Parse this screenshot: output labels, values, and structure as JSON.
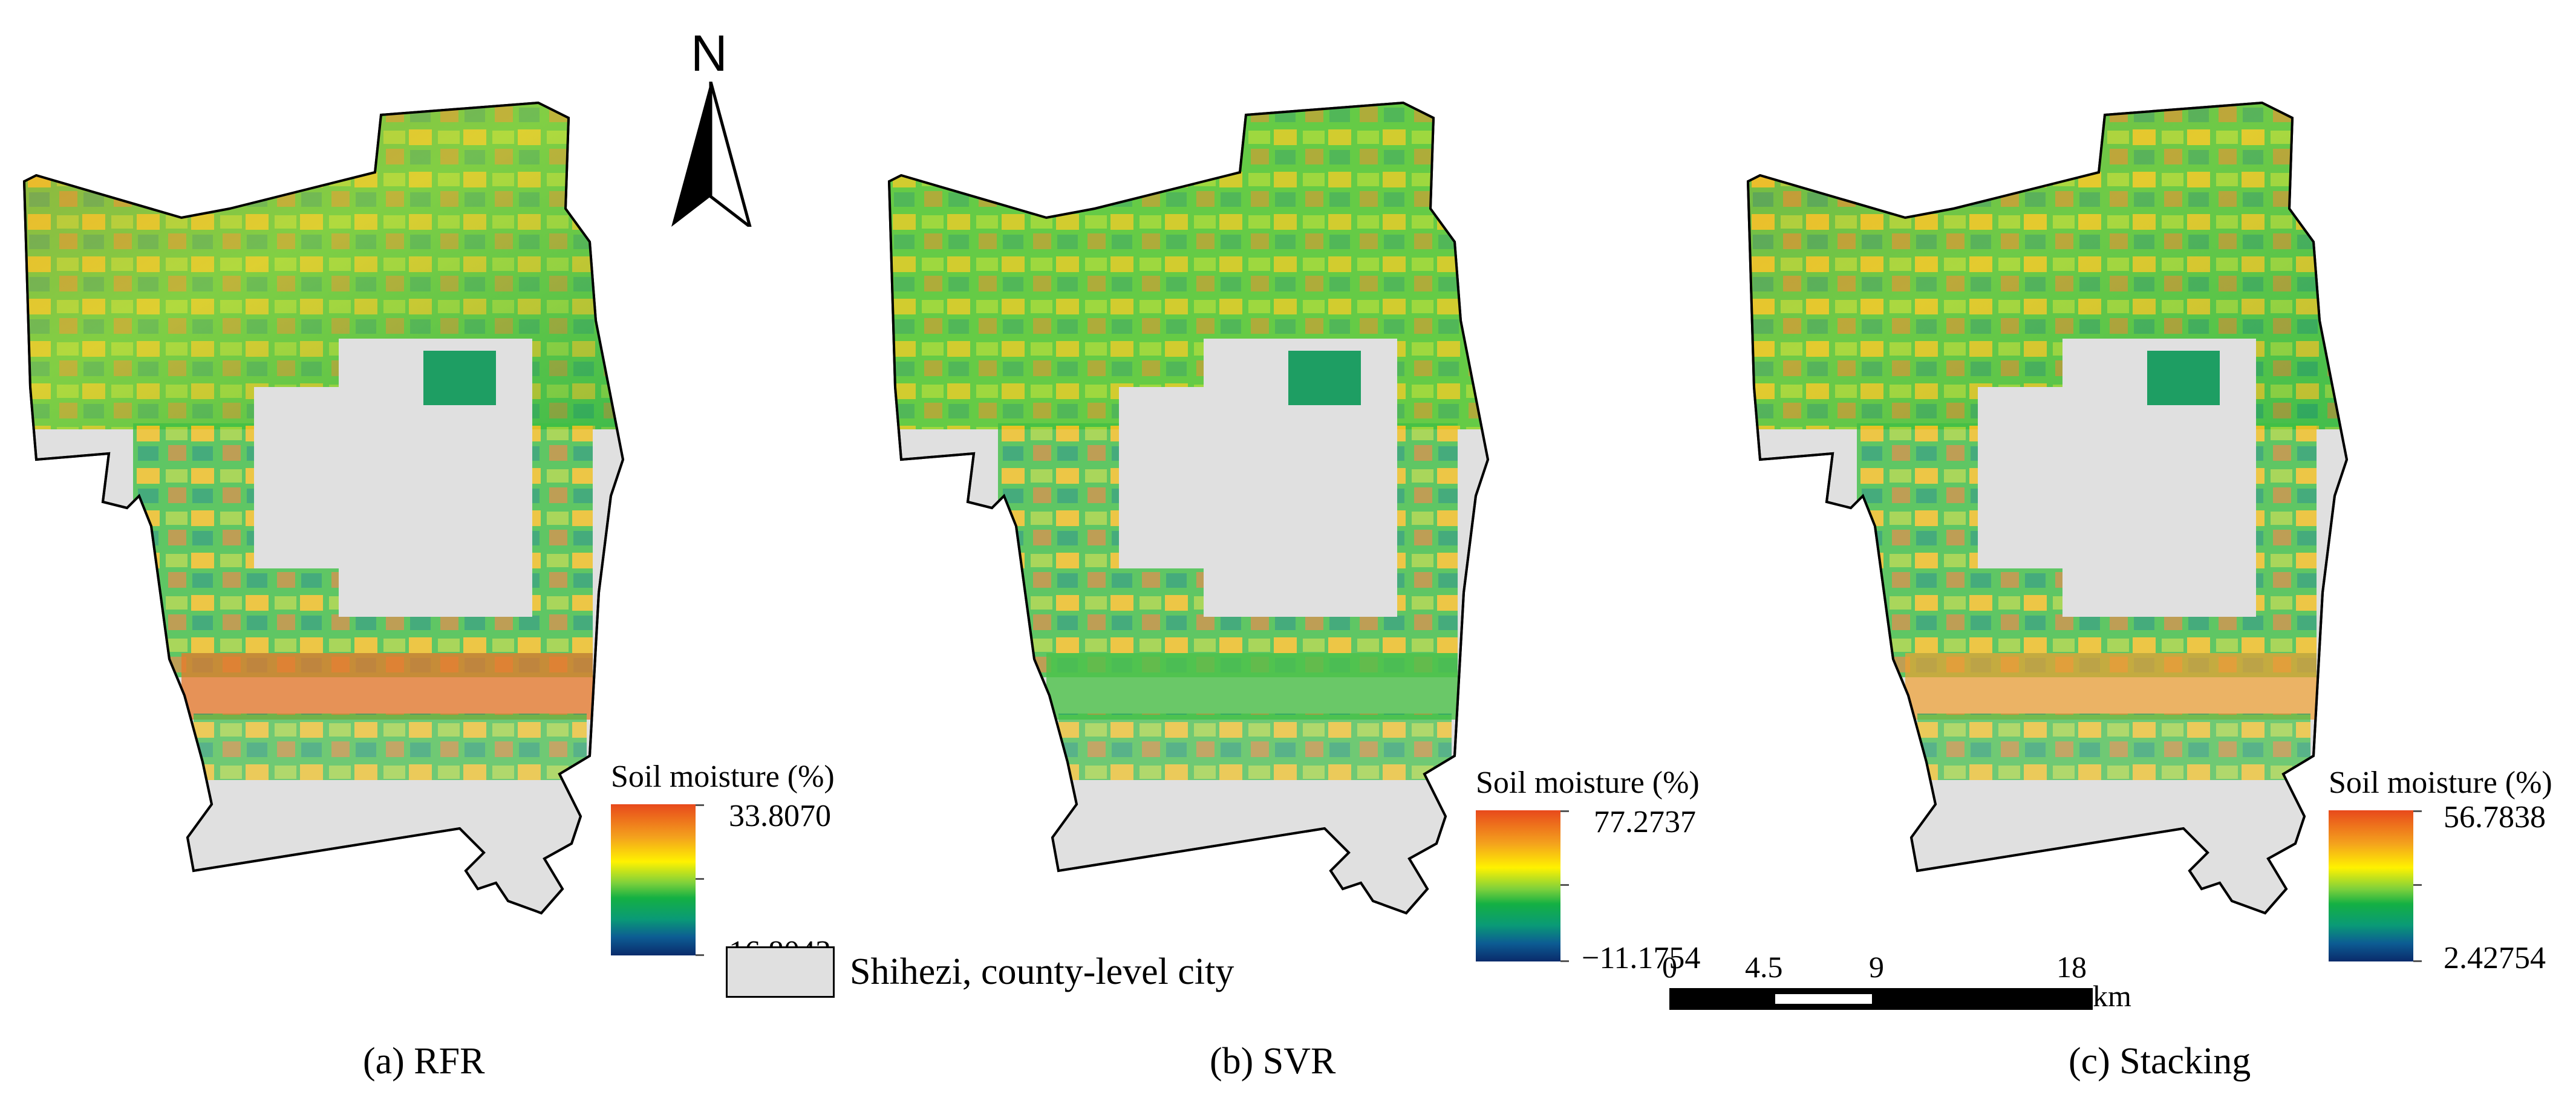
{
  "north_arrow": {
    "letter": "N"
  },
  "panels": [
    {
      "caption": "(a) RFR",
      "legend_title": "Soil moisture (%)",
      "legend_max": "33.8070",
      "legend_min": "16.8043"
    },
    {
      "caption": "(b) SVR",
      "legend_title": "Soil moisture (%)",
      "legend_max": "77.2737",
      "legend_min": "−11.1754"
    },
    {
      "caption": "(c) Stacking",
      "legend_title": "Soil moisture (%)",
      "legend_max": "56.7838",
      "legend_min": "2.42754"
    }
  ],
  "boundary_legend": {
    "label": "Shihezi, county-level city",
    "fill_color": "#e0e0e0"
  },
  "scale_bar": {
    "ticks": [
      "0",
      "4.5",
      "9",
      "18"
    ],
    "unit": "km"
  },
  "colors": {
    "high": "#e8491c",
    "mid_high": "#fff200",
    "mid": "#14b043",
    "low": "#0a2b6b",
    "background": "#e0e0e0"
  },
  "icons": [
    "north-arrow-icon"
  ]
}
